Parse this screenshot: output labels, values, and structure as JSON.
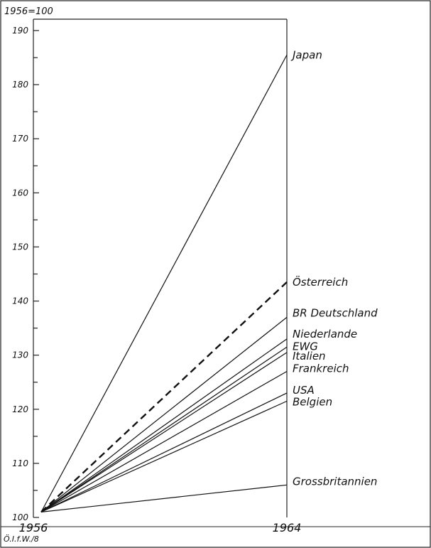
{
  "chart_data": {
    "type": "line",
    "index_label": "1956=100",
    "x": [
      "1956",
      "1964"
    ],
    "ylim": [
      100,
      190
    ],
    "yticks": [
      100,
      110,
      120,
      130,
      140,
      150,
      160,
      170,
      180,
      190
    ],
    "grid": false,
    "legend": "inline labels at right end of lines",
    "series": [
      {
        "name": "Japan",
        "values": [
          101,
          185.5
        ],
        "dashed": false
      },
      {
        "name": "Österreich",
        "values": [
          101,
          143.5
        ],
        "dashed": true
      },
      {
        "name": "BR Deutschland",
        "values": [
          101,
          137
        ],
        "dashed": false
      },
      {
        "name": "Niederlande",
        "values": [
          101,
          133
        ],
        "dashed": false
      },
      {
        "name": "EWG",
        "values": [
          101,
          131.5
        ],
        "dashed": false
      },
      {
        "name": "Italien",
        "values": [
          101,
          130.5
        ],
        "dashed": false
      },
      {
        "name": "Frankreich",
        "values": [
          101,
          127
        ],
        "dashed": false
      },
      {
        "name": "USA",
        "values": [
          101,
          123
        ],
        "dashed": false
      },
      {
        "name": "Belgien",
        "values": [
          101,
          121.5
        ],
        "dashed": false
      },
      {
        "name": "Grossbritannien",
        "values": [
          101,
          106
        ],
        "dashed": false
      }
    ],
    "source_note": "Ö.I.f.W./8"
  }
}
